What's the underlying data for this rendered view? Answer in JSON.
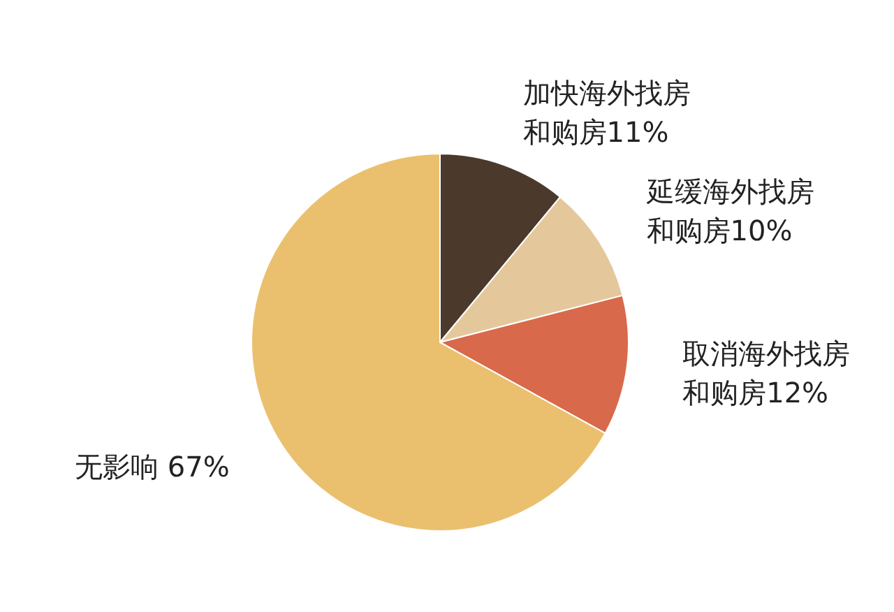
{
  "chart_data": {
    "type": "pie",
    "categories": [
      "加快海外找房和购房",
      "延缓海外找房和购房",
      "取消海外找房和购房",
      "无影响"
    ],
    "values": [
      11,
      10,
      12,
      67
    ],
    "colors": [
      "#4b3a2c",
      "#e4c89c",
      "#d8694a",
      "#eac06e"
    ],
    "value_labels": [
      "11%",
      "10%",
      "12%",
      "67%"
    ]
  }
}
